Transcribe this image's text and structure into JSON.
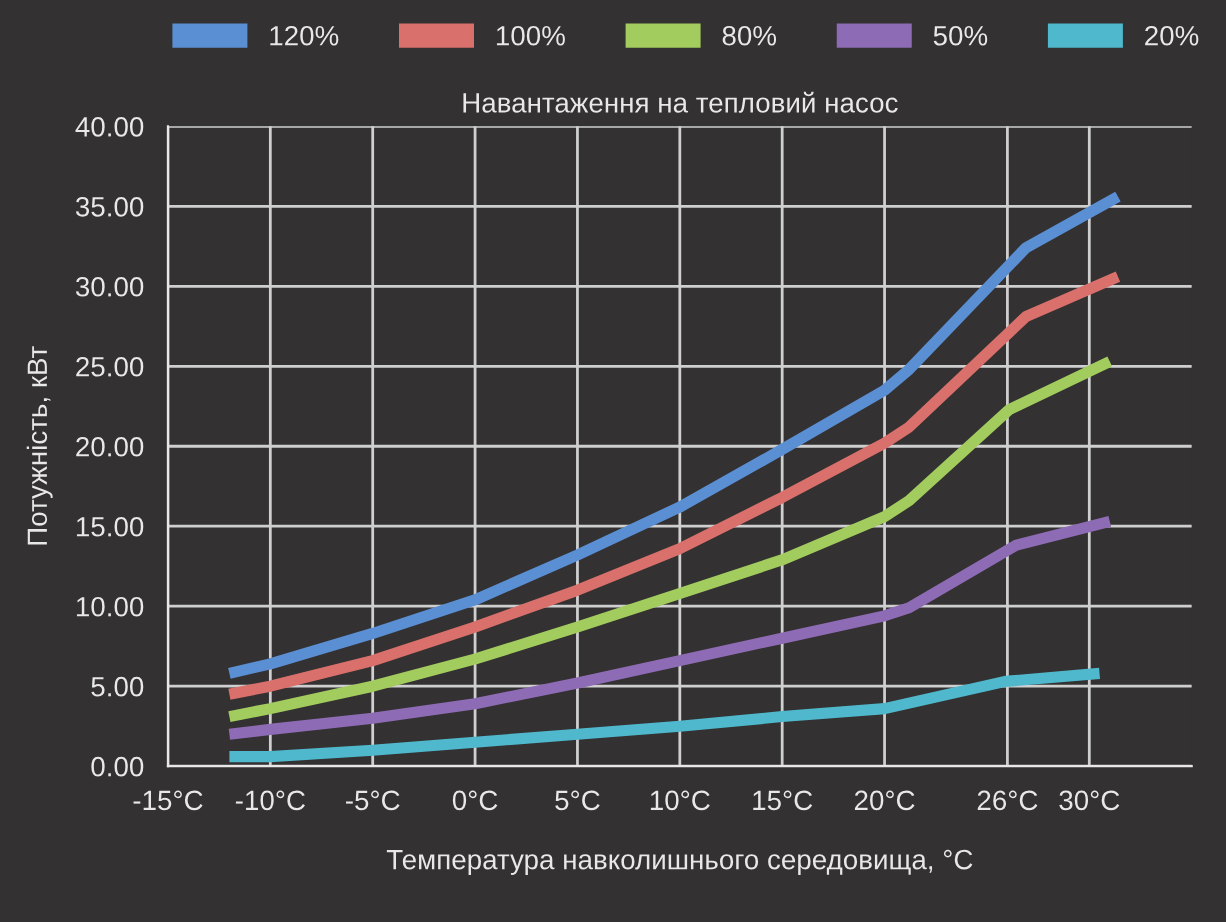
{
  "chart_data": {
    "type": "line",
    "title": "Навантаження на тепловий насос",
    "xlabel": "Температура навколишнього середовища, °C",
    "ylabel": "Потужність, кВт",
    "xlim": [
      -15,
      35
    ],
    "xticks": [
      {
        "value": -15,
        "label": "-15°C"
      },
      {
        "value": -10,
        "label": "-10°C"
      },
      {
        "value": -5,
        "label": "-5°C"
      },
      {
        "value": 0,
        "label": "0°C"
      },
      {
        "value": 5,
        "label": "5°C"
      },
      {
        "value": 10,
        "label": "10°C"
      },
      {
        "value": 15,
        "label": "15°C"
      },
      {
        "value": 20,
        "label": "20°C"
      },
      {
        "value": 26,
        "label": "26°C"
      },
      {
        "value": 30,
        "label": "30°C"
      }
    ],
    "ylim": [
      0,
      40
    ],
    "yticks": [
      {
        "value": 0,
        "label": "0.00"
      },
      {
        "value": 5,
        "label": "5.00"
      },
      {
        "value": 10,
        "label": "10.00"
      },
      {
        "value": 15,
        "label": "15.00"
      },
      {
        "value": 20,
        "label": "20.00"
      },
      {
        "value": 25,
        "label": "25.00"
      },
      {
        "value": 30,
        "label": "30.00"
      },
      {
        "value": 35,
        "label": "35.00"
      },
      {
        "value": 40,
        "label": "40.00"
      }
    ],
    "grid": true,
    "legend": "top",
    "marker": "none",
    "line_style": "solid",
    "series": [
      {
        "name": "120%",
        "color": "#5b8fd4",
        "x": [
          -12,
          -10,
          -5,
          0,
          5,
          10,
          15,
          20,
          21.2,
          26.9,
          31.4
        ],
        "values": [
          5.8,
          6.4,
          8.3,
          10.4,
          13.2,
          16.2,
          19.8,
          23.5,
          24.8,
          32.4,
          35.6
        ]
      },
      {
        "name": "100%",
        "color": "#d9706c",
        "x": [
          -12,
          -10,
          -5,
          0,
          5,
          10,
          15,
          20,
          21.2,
          26.9,
          31.4
        ],
        "values": [
          4.5,
          5.0,
          6.6,
          8.7,
          11.0,
          13.6,
          16.8,
          20.2,
          21.2,
          28.1,
          30.6
        ]
      },
      {
        "name": "80%",
        "color": "#a3cc5e",
        "x": [
          -12,
          -10,
          -5,
          0,
          5,
          10,
          15,
          20,
          21.2,
          26.1,
          31.0
        ],
        "values": [
          3.1,
          3.6,
          5.0,
          6.7,
          8.7,
          10.8,
          12.9,
          15.6,
          16.6,
          22.3,
          25.3
        ]
      },
      {
        "name": "50%",
        "color": "#8e6bb5",
        "x": [
          -12,
          -10,
          -5,
          0,
          5,
          10,
          15,
          20,
          21.2,
          26.4,
          31.0
        ],
        "values": [
          2.0,
          2.3,
          3.0,
          3.9,
          5.2,
          6.6,
          8.0,
          9.4,
          9.9,
          13.8,
          15.3
        ]
      },
      {
        "name": "20%",
        "color": "#4fb8cc",
        "x": [
          -12,
          -10,
          -5,
          0,
          5,
          10,
          15,
          20,
          25.9,
          30.5
        ],
        "values": [
          0.6,
          0.6,
          1.0,
          1.5,
          2.0,
          2.5,
          3.1,
          3.6,
          5.3,
          5.8
        ]
      }
    ]
  }
}
